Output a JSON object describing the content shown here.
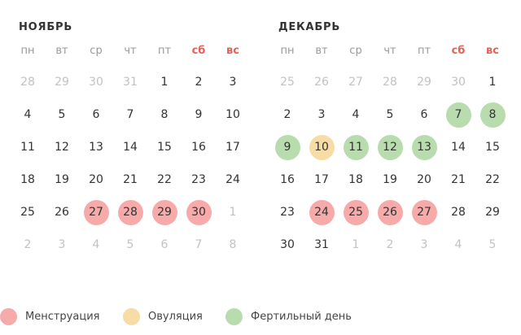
{
  "calendar": {
    "months": [
      {
        "title": "НОЯБРЬ",
        "weekdays": [
          "пн",
          "вт",
          "ср",
          "чт",
          "пт",
          "сб",
          "вс"
        ],
        "weeks": [
          [
            {
              "day": "28",
              "state": "other"
            },
            {
              "day": "29",
              "state": "other"
            },
            {
              "day": "30",
              "state": "other"
            },
            {
              "day": "31",
              "state": "other"
            },
            {
              "day": "1",
              "state": "normal"
            },
            {
              "day": "2",
              "state": "normal"
            },
            {
              "day": "3",
              "state": "normal"
            }
          ],
          [
            {
              "day": "4",
              "state": "normal"
            },
            {
              "day": "5",
              "state": "normal"
            },
            {
              "day": "6",
              "state": "normal"
            },
            {
              "day": "7",
              "state": "normal"
            },
            {
              "day": "8",
              "state": "normal"
            },
            {
              "day": "9",
              "state": "normal"
            },
            {
              "day": "10",
              "state": "normal"
            }
          ],
          [
            {
              "day": "11",
              "state": "normal"
            },
            {
              "day": "12",
              "state": "normal"
            },
            {
              "day": "13",
              "state": "normal"
            },
            {
              "day": "14",
              "state": "normal"
            },
            {
              "day": "15",
              "state": "normal"
            },
            {
              "day": "16",
              "state": "normal"
            },
            {
              "day": "17",
              "state": "normal"
            }
          ],
          [
            {
              "day": "18",
              "state": "normal"
            },
            {
              "day": "19",
              "state": "normal"
            },
            {
              "day": "20",
              "state": "normal"
            },
            {
              "day": "21",
              "state": "normal"
            },
            {
              "day": "22",
              "state": "normal"
            },
            {
              "day": "23",
              "state": "normal"
            },
            {
              "day": "24",
              "state": "normal"
            }
          ],
          [
            {
              "day": "25",
              "state": "normal"
            },
            {
              "day": "26",
              "state": "normal"
            },
            {
              "day": "27",
              "state": "menstruation"
            },
            {
              "day": "28",
              "state": "menstruation"
            },
            {
              "day": "29",
              "state": "menstruation"
            },
            {
              "day": "30",
              "state": "menstruation"
            },
            {
              "day": "1",
              "state": "other"
            }
          ],
          [
            {
              "day": "2",
              "state": "other"
            },
            {
              "day": "3",
              "state": "other"
            },
            {
              "day": "4",
              "state": "other"
            },
            {
              "day": "5",
              "state": "other"
            },
            {
              "day": "6",
              "state": "other"
            },
            {
              "day": "7",
              "state": "other"
            },
            {
              "day": "8",
              "state": "other"
            }
          ]
        ]
      },
      {
        "title": "ДЕКАБРЬ",
        "weekdays": [
          "пн",
          "вт",
          "ср",
          "чт",
          "пт",
          "сб",
          "вс"
        ],
        "weeks": [
          [
            {
              "day": "25",
              "state": "other"
            },
            {
              "day": "26",
              "state": "other"
            },
            {
              "day": "27",
              "state": "other"
            },
            {
              "day": "28",
              "state": "other"
            },
            {
              "day": "29",
              "state": "other"
            },
            {
              "day": "30",
              "state": "other"
            },
            {
              "day": "1",
              "state": "normal"
            }
          ],
          [
            {
              "day": "2",
              "state": "normal"
            },
            {
              "day": "3",
              "state": "normal"
            },
            {
              "day": "4",
              "state": "normal"
            },
            {
              "day": "5",
              "state": "normal"
            },
            {
              "day": "6",
              "state": "normal"
            },
            {
              "day": "7",
              "state": "fertile"
            },
            {
              "day": "8",
              "state": "fertile"
            }
          ],
          [
            {
              "day": "9",
              "state": "fertile"
            },
            {
              "day": "10",
              "state": "ovulation"
            },
            {
              "day": "11",
              "state": "fertile"
            },
            {
              "day": "12",
              "state": "fertile"
            },
            {
              "day": "13",
              "state": "fertile"
            },
            {
              "day": "14",
              "state": "normal"
            },
            {
              "day": "15",
              "state": "normal"
            }
          ],
          [
            {
              "day": "16",
              "state": "normal"
            },
            {
              "day": "17",
              "state": "normal"
            },
            {
              "day": "18",
              "state": "normal"
            },
            {
              "day": "19",
              "state": "normal"
            },
            {
              "day": "20",
              "state": "normal"
            },
            {
              "day": "21",
              "state": "normal"
            },
            {
              "day": "22",
              "state": "normal"
            }
          ],
          [
            {
              "day": "23",
              "state": "normal"
            },
            {
              "day": "24",
              "state": "menstruation"
            },
            {
              "day": "25",
              "state": "menstruation"
            },
            {
              "day": "26",
              "state": "menstruation"
            },
            {
              "day": "27",
              "state": "menstruation"
            },
            {
              "day": "28",
              "state": "normal"
            },
            {
              "day": "29",
              "state": "normal"
            }
          ],
          [
            {
              "day": "30",
              "state": "normal"
            },
            {
              "day": "31",
              "state": "normal"
            },
            {
              "day": "1",
              "state": "other"
            },
            {
              "day": "2",
              "state": "other"
            },
            {
              "day": "3",
              "state": "other"
            },
            {
              "day": "4",
              "state": "other"
            },
            {
              "day": "5",
              "state": "other"
            }
          ]
        ]
      }
    ]
  },
  "legend": {
    "items": [
      {
        "key": "menstruation",
        "label": "Менструация",
        "color": "#f6aaaa"
      },
      {
        "key": "ovulation",
        "label": "Овуляция",
        "color": "#f7dca6"
      },
      {
        "key": "fertile",
        "label": "Фертильный день",
        "color": "#b8dcad"
      }
    ]
  },
  "colors": {
    "text": "#333333",
    "muted_day": "#c2c2c2",
    "weekday": "#9a9a9a",
    "weekend_accent": "#e4605a"
  }
}
